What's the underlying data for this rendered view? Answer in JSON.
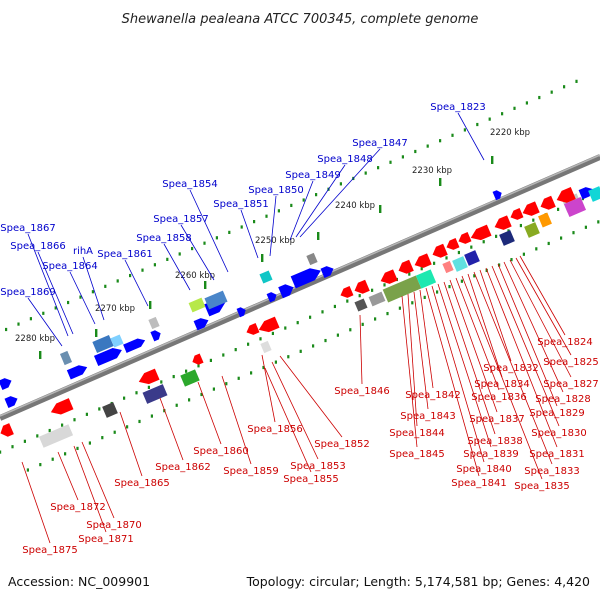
{
  "header": {
    "title": "Shewanella pealeana ATCC 700345, complete genome"
  },
  "footer": {
    "accession": "Accession: NC_009901",
    "summary": "Topology: circular; Length: 5,174,581 bp; Genes: 4,420"
  },
  "colors": {
    "backbone": "#8a8a8a",
    "forward_strand": "#0000ff",
    "reverse_strand": "#ff0000",
    "forward_label": "#0000cc",
    "reverse_label": "#cc0000",
    "tick_marks": "#1a8a1a"
  },
  "scale_labels": [
    "2220 kbp",
    "2230 kbp",
    "2240 kbp",
    "2250 kbp",
    "2260 kbp",
    "2270 kbp",
    "2280 kbp"
  ],
  "forward_genes": [
    "Spea_1823",
    "Spea_1847",
    "Spea_1848",
    "Spea_1849",
    "Spea_1850",
    "Spea_1851",
    "Spea_1854",
    "Spea_1857",
    "Spea_1858",
    "Spea_1861",
    "rihA",
    "Spea_1864",
    "Spea_1866",
    "Spea_1867",
    "Spea_1869"
  ],
  "reverse_genes": [
    "Spea_1824",
    "Spea_1825",
    "Spea_1827",
    "Spea_1828",
    "Spea_1829",
    "Spea_1830",
    "Spea_1831",
    "Spea_1832",
    "Spea_1833",
    "Spea_1834",
    "Spea_1835",
    "Spea_1836",
    "Spea_1837",
    "Spea_1838",
    "Spea_1839",
    "Spea_1840",
    "Spea_1841",
    "Spea_1842",
    "Spea_1843",
    "Spea_1844",
    "Spea_1845",
    "Spea_1846",
    "Spea_1852",
    "Spea_1853",
    "Spea_1855",
    "Spea_1856",
    "Spea_1859",
    "Spea_1860",
    "Spea_1862",
    "Spea_1865",
    "Spea_1870",
    "Spea_1871",
    "Spea_1872",
    "Spea_1875"
  ]
}
